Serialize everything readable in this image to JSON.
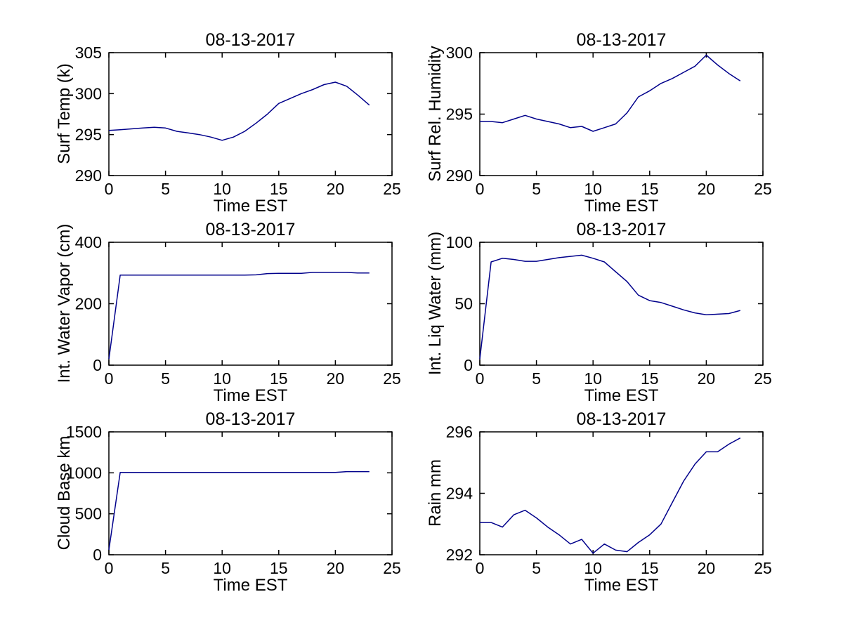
{
  "figure": {
    "background": "#ffffff",
    "line_color": "#00008B",
    "axis_color": "#000000"
  },
  "chart_data": [
    {
      "type": "line",
      "title": "08-13-2017",
      "xlabel": "Time EST",
      "ylabel": "Surf Temp (k)",
      "xlim": [
        0,
        25
      ],
      "ylim": [
        290,
        305
      ],
      "xticks": [
        0,
        5,
        10,
        15,
        20,
        25
      ],
      "yticks": [
        290,
        295,
        300,
        305
      ],
      "grid": false,
      "x": [
        0,
        1,
        2,
        3,
        4,
        5,
        6,
        7,
        8,
        9,
        10,
        11,
        12,
        13,
        14,
        15,
        16,
        17,
        18,
        19,
        20,
        21,
        22,
        23
      ],
      "y": [
        295.5,
        295.6,
        295.7,
        295.8,
        295.9,
        295.8,
        295.4,
        295.2,
        295.0,
        294.7,
        294.3,
        294.7,
        295.4,
        296.4,
        297.5,
        298.8,
        299.4,
        300.0,
        300.5,
        301.1,
        301.4,
        300.9,
        299.8,
        298.6
      ]
    },
    {
      "type": "line",
      "title": "08-13-2017",
      "xlabel": "Time EST",
      "ylabel": "Surf Rel. Humidity",
      "xlim": [
        0,
        25
      ],
      "ylim": [
        290,
        300
      ],
      "xticks": [
        0,
        5,
        10,
        15,
        20,
        25
      ],
      "yticks": [
        290,
        295,
        300
      ],
      "grid": false,
      "x": [
        0,
        1,
        2,
        3,
        4,
        5,
        6,
        7,
        8,
        9,
        10,
        11,
        12,
        13,
        14,
        15,
        16,
        17,
        18,
        19,
        20,
        21,
        22,
        23
      ],
      "y": [
        294.4,
        294.4,
        294.3,
        294.6,
        294.9,
        294.6,
        294.4,
        294.2,
        293.9,
        294.0,
        293.6,
        293.9,
        294.2,
        295.1,
        296.4,
        296.9,
        297.5,
        297.9,
        298.4,
        298.9,
        299.8,
        299.0,
        298.3,
        297.7
      ]
    },
    {
      "type": "line",
      "title": "08-13-2017",
      "xlabel": "Time EST",
      "ylabel": "Int. Water Vapor (cm)",
      "xlim": [
        0,
        25
      ],
      "ylim": [
        0,
        400
      ],
      "xticks": [
        0,
        5,
        10,
        15,
        20,
        25
      ],
      "yticks": [
        0,
        200,
        400
      ],
      "grid": false,
      "x": [
        0,
        1,
        2,
        3,
        4,
        5,
        6,
        7,
        8,
        9,
        10,
        11,
        12,
        13,
        14,
        15,
        16,
        17,
        18,
        19,
        20,
        21,
        22,
        23
      ],
      "y": [
        20,
        293,
        293,
        293,
        293,
        293,
        293,
        293,
        293,
        293,
        293,
        293,
        293,
        294,
        298,
        299,
        299,
        299,
        302,
        302,
        302,
        302,
        300,
        300
      ]
    },
    {
      "type": "line",
      "title": "08-13-2017",
      "xlabel": "Time EST",
      "ylabel": "Int. Liq Water (mm)",
      "xlim": [
        0,
        25
      ],
      "ylim": [
        0,
        100
      ],
      "xticks": [
        0,
        5,
        10,
        15,
        20,
        25
      ],
      "yticks": [
        0,
        50,
        100
      ],
      "grid": false,
      "x": [
        0,
        1,
        2,
        3,
        4,
        5,
        6,
        7,
        8,
        9,
        10,
        11,
        12,
        13,
        14,
        15,
        16,
        17,
        18,
        19,
        20,
        21,
        22,
        23
      ],
      "y": [
        5,
        84,
        87,
        86,
        84.5,
        84.5,
        86,
        87.5,
        88.5,
        89.5,
        87,
        84,
        76,
        68,
        57,
        52.5,
        51,
        48,
        45,
        42.5,
        41,
        41.5,
        42,
        44.5
      ]
    },
    {
      "type": "line",
      "title": "08-13-2017",
      "xlabel": "Time EST",
      "ylabel": "Cloud Base km",
      "xlim": [
        0,
        25
      ],
      "ylim": [
        0,
        1500
      ],
      "xticks": [
        0,
        5,
        10,
        15,
        20,
        25
      ],
      "yticks": [
        0,
        500,
        1000,
        1500
      ],
      "grid": false,
      "x": [
        0,
        1,
        2,
        3,
        4,
        5,
        6,
        7,
        8,
        9,
        10,
        11,
        12,
        13,
        14,
        15,
        16,
        17,
        18,
        19,
        20,
        21,
        22,
        23
      ],
      "y": [
        60,
        1005,
        1005,
        1005,
        1005,
        1005,
        1005,
        1005,
        1005,
        1005,
        1005,
        1005,
        1005,
        1005,
        1005,
        1005,
        1005,
        1005,
        1005,
        1005,
        1005,
        1015,
        1015,
        1015
      ]
    },
    {
      "type": "line",
      "title": "08-13-2017",
      "xlabel": "Time EST",
      "ylabel": "Rain mm",
      "xlim": [
        0,
        25
      ],
      "ylim": [
        292,
        296
      ],
      "xticks": [
        0,
        5,
        10,
        15,
        20,
        25
      ],
      "yticks": [
        292,
        294,
        296
      ],
      "grid": false,
      "x": [
        0,
        1,
        2,
        3,
        4,
        5,
        6,
        7,
        8,
        9,
        10,
        11,
        12,
        13,
        14,
        15,
        16,
        17,
        18,
        19,
        20,
        21,
        22,
        23
      ],
      "y": [
        293.05,
        293.05,
        292.9,
        293.3,
        293.45,
        293.2,
        292.9,
        292.65,
        292.35,
        292.5,
        292.05,
        292.35,
        292.15,
        292.1,
        292.4,
        292.65,
        293.0,
        293.7,
        294.4,
        294.95,
        295.35,
        295.35,
        295.6,
        295.8
      ]
    }
  ]
}
